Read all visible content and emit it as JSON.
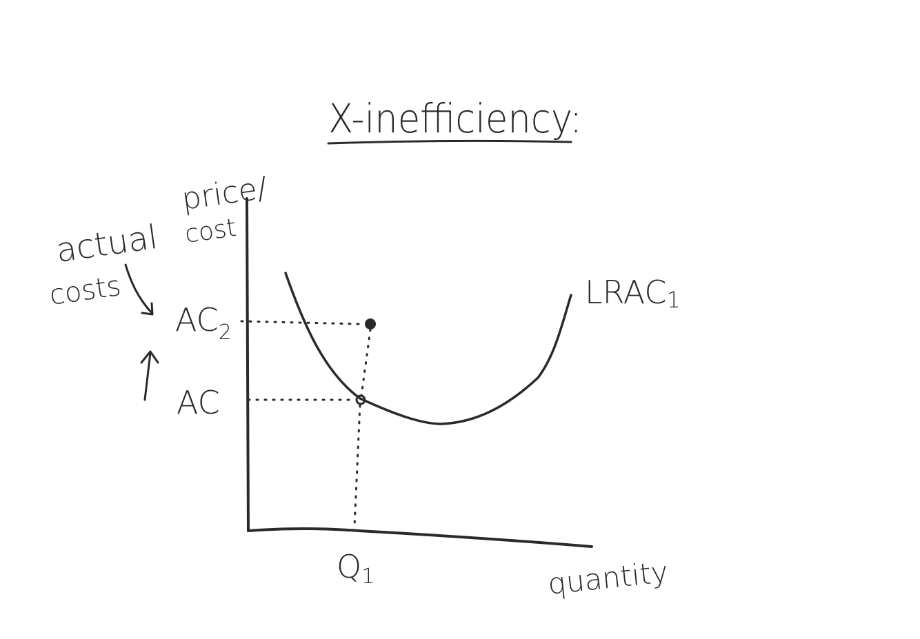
{
  "title": "X-inefficiency:",
  "y_axis_label_line1": "price/",
  "y_axis_label_line2": "cost",
  "x_axis_label": "quantity",
  "curve_label": "LRAC",
  "curve_label_subscript": "1",
  "level_high_label": "AC",
  "level_high_subscript": "2",
  "level_low_label": "AC",
  "quantity_marker_label": "Q",
  "quantity_marker_subscript": "1",
  "note_line1": "actual",
  "note_line2": "costs",
  "ink_color": "#2a2a2a"
}
